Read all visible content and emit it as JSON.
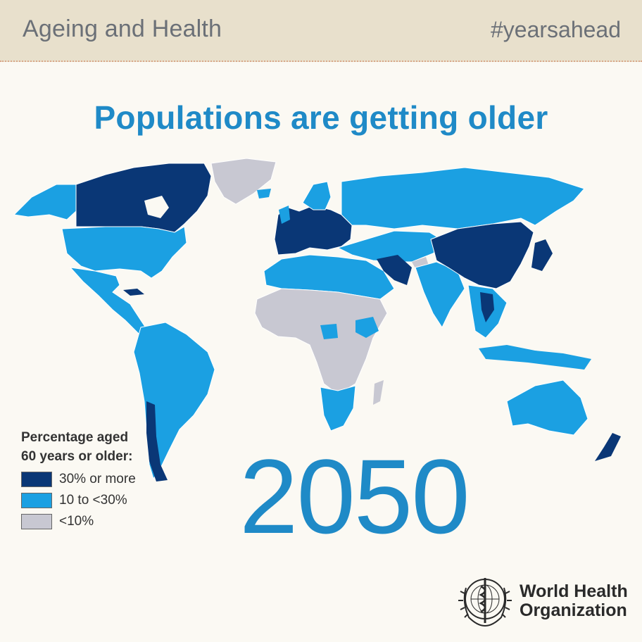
{
  "header": {
    "left_title": "Ageing and Health",
    "right_tag": "#yearsahead"
  },
  "headline": "Populations are getting older",
  "year": "2050",
  "legend": {
    "title_line1": "Percentage aged",
    "title_line2": "60 years or older:",
    "items": [
      {
        "label": "30% or more",
        "color": "#0a3776"
      },
      {
        "label": "10 to <30%",
        "color": "#1ba0e2"
      },
      {
        "label": "<10%",
        "color": "#c8c8d2"
      }
    ]
  },
  "org": {
    "line1": "World Health",
    "line2": "Organization"
  },
  "colors": {
    "high": "#0a3776",
    "mid": "#1ba0e2",
    "low": "#c8c8d2",
    "accent": "#1f8ac7",
    "banner": "#e8e0cc"
  }
}
